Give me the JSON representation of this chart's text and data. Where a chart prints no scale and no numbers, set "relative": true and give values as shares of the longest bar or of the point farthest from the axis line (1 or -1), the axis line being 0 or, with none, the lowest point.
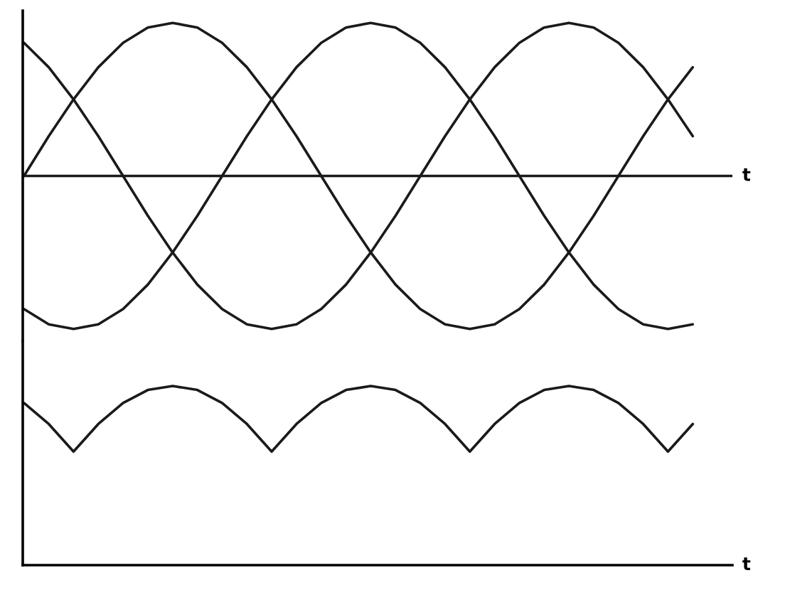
{
  "chart_data": [
    {
      "type": "line",
      "relative": true,
      "xlabel": "t",
      "categories": [
        null,
        null,
        null,
        null,
        null,
        null,
        null,
        null,
        null,
        null,
        null,
        null,
        null,
        null,
        null,
        null,
        null,
        null,
        null,
        null,
        null,
        null,
        null,
        null,
        null,
        null,
        null,
        null
      ],
      "series": [
        {
          "color": "#1a1a1a",
          "values": [
            0,
            0.26,
            0.5,
            0.71,
            0.87,
            0.97,
            1,
            0.97,
            0.87,
            0.71,
            0.5,
            0.26,
            0,
            -0.26,
            -0.5,
            -0.71,
            -0.87,
            -0.97,
            -1,
            -0.97,
            -0.87,
            -0.71,
            -0.5,
            -0.26,
            0,
            0.26,
            0.5,
            0.71
          ]
        },
        {
          "color": "#1a1a1a",
          "values": [
            0.87,
            0.71,
            0.5,
            0.26,
            0,
            -0.26,
            -0.5,
            -0.71,
            -0.87,
            -0.97,
            -1,
            -0.97,
            -0.87,
            -0.71,
            -0.5,
            -0.26,
            0,
            0.26,
            0.5,
            0.71,
            0.87,
            0.97,
            1,
            0.97,
            0.87,
            0.71,
            0.5,
            0.26
          ]
        },
        {
          "color": "#1a1a1a",
          "values": [
            -0.87,
            -0.97,
            -1,
            -0.97,
            -0.87,
            -0.71,
            -0.5,
            -0.26,
            0,
            0.26,
            0.5,
            0.71,
            0.87,
            0.97,
            1,
            0.97,
            0.87,
            0.71,
            0.5,
            0.26,
            0,
            -0.26,
            -0.5,
            -0.71,
            -0.87,
            -0.97,
            -1,
            -0.97
          ]
        }
      ]
    },
    {
      "type": "line",
      "relative": true,
      "xlabel": "t",
      "categories": [
        null,
        null,
        null,
        null,
        null,
        null,
        null,
        null,
        null,
        null,
        null,
        null,
        null,
        null,
        null,
        null,
        null,
        null,
        null,
        null,
        null,
        null,
        null,
        null,
        null,
        null,
        null,
        null
      ],
      "series": [
        {
          "color": "#1a1a1a",
          "values": [
            0.905,
            0.788,
            0.634,
            0.788,
            0.905,
            0.978,
            1,
            0.978,
            0.905,
            0.788,
            0.634,
            0.788,
            0.905,
            0.978,
            1,
            0.978,
            0.905,
            0.788,
            0.634,
            0.788,
            0.905,
            0.978,
            1,
            0.978,
            0.905,
            0.788,
            0.634,
            0.788
          ]
        }
      ]
    }
  ]
}
